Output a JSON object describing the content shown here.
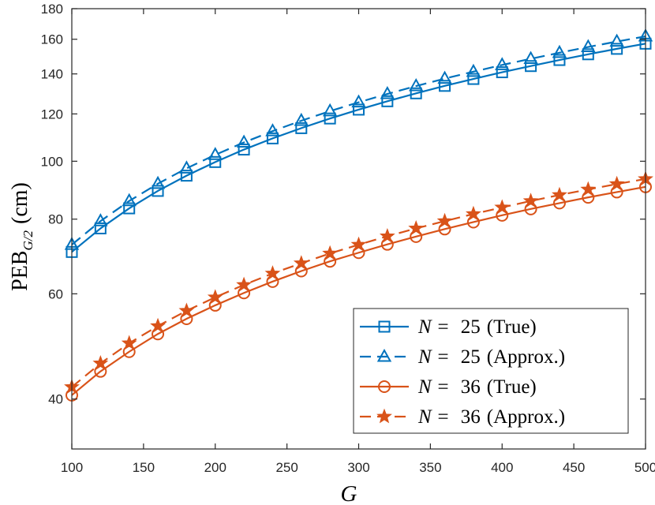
{
  "chart_data": {
    "type": "line",
    "title": "",
    "xlabel": "G",
    "ylabel": {
      "base": "PEB",
      "subscript": "G/2",
      "unit": "(cm)"
    },
    "xlim": [
      100,
      500
    ],
    "ylim": [
      33,
      180
    ],
    "yscale": "log",
    "grid": false,
    "legend_position": "bottom-right",
    "x": [
      100,
      120,
      140,
      160,
      180,
      200,
      220,
      240,
      260,
      280,
      300,
      320,
      340,
      360,
      380,
      400,
      420,
      440,
      460,
      480,
      500
    ],
    "xticks": [
      100,
      150,
      200,
      250,
      300,
      350,
      400,
      450,
      500
    ],
    "xtick_labels": [
      "100",
      "150",
      "200",
      "250",
      "300",
      "350",
      "400",
      "450",
      "500"
    ],
    "yticks": [
      40,
      60,
      80,
      100,
      120,
      140,
      160,
      180
    ],
    "ytick_labels": [
      "40",
      "60",
      "80",
      "100",
      "120",
      "140",
      "160",
      "180"
    ],
    "series": [
      {
        "name": "N = 25 (True)",
        "legend_var": "N =",
        "legend_num": "25",
        "legend_suffix": "(True)",
        "color": "#0072BD",
        "dash": false,
        "marker": "square",
        "values": [
          70.5,
          77.2,
          83.4,
          89.2,
          94.6,
          99.7,
          104.6,
          109.2,
          113.6,
          117.9,
          122.0,
          126.0,
          129.9,
          133.7,
          137.3,
          140.9,
          144.3,
          147.7,
          151.0,
          154.2,
          157.3
        ]
      },
      {
        "name": "N = 25 (Approx.)",
        "legend_var": "N =",
        "legend_num": "25",
        "legend_suffix": "(Approx.)",
        "color": "#0072BD",
        "dash": true,
        "marker": "triangle",
        "values": [
          72.5,
          79.4,
          85.8,
          91.7,
          97.3,
          102.5,
          107.5,
          112.3,
          116.9,
          121.3,
          125.5,
          129.6,
          133.6,
          137.5,
          141.2,
          144.9,
          148.4,
          151.9,
          155.3,
          158.6,
          161.8
        ]
      },
      {
        "name": "N = 36 (True)",
        "legend_var": "N =",
        "legend_num": "36",
        "legend_suffix": "(True)",
        "color": "#D95319",
        "dash": false,
        "marker": "circle",
        "values": [
          40.6,
          44.5,
          48.0,
          51.4,
          54.5,
          57.4,
          60.2,
          62.9,
          65.5,
          68.0,
          70.3,
          72.6,
          74.8,
          77.0,
          79.1,
          81.2,
          83.2,
          85.1,
          87.0,
          88.8,
          90.6
        ]
      },
      {
        "name": "N = 36 (Approx.)",
        "legend_var": "N =",
        "legend_num": "36",
        "legend_suffix": "(Approx.)",
        "color": "#D95319",
        "dash": true,
        "marker": "star",
        "values": [
          41.9,
          45.9,
          49.6,
          53.0,
          56.2,
          59.2,
          62.1,
          64.9,
          67.5,
          70.1,
          72.5,
          74.9,
          77.2,
          79.4,
          81.6,
          83.7,
          85.8,
          87.8,
          89.7,
          91.6,
          93.4
        ]
      }
    ]
  }
}
